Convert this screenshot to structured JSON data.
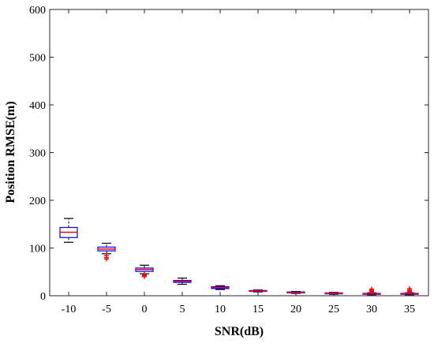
{
  "chart_data": {
    "type": "box",
    "xlabel": "SNR(dB)",
    "ylabel": "Position RMSE(m)",
    "categories": [
      "-10",
      "-5",
      "0",
      "5",
      "10",
      "15",
      "20",
      "25",
      "30",
      "35"
    ],
    "ylim": [
      0,
      600
    ],
    "yticks": [
      0,
      100,
      200,
      300,
      400,
      500,
      600
    ],
    "grid": false,
    "colors": {
      "box": "#0000ff",
      "median": "#ff0000",
      "whisker": "#000000",
      "outlier": "#ff0000"
    },
    "boxes": [
      {
        "category": "-10",
        "whisker_low": 112,
        "q1": 122,
        "median": 133,
        "q3": 143,
        "whisker_high": 162,
        "outliers": []
      },
      {
        "category": "-5",
        "whisker_low": 88,
        "q1": 94,
        "median": 98,
        "q3": 102,
        "whisker_high": 110,
        "outliers": [
          77,
          80,
          84
        ]
      },
      {
        "category": "0",
        "whisker_low": 46,
        "q1": 51,
        "median": 55,
        "q3": 58,
        "whisker_high": 64,
        "outliers": [
          40,
          42,
          44
        ]
      },
      {
        "category": "5",
        "whisker_low": 24,
        "q1": 28,
        "median": 30,
        "q3": 32,
        "whisker_high": 37,
        "outliers": []
      },
      {
        "category": "10",
        "whisker_low": 13,
        "q1": 15,
        "median": 17,
        "q3": 19,
        "whisker_high": 21,
        "outliers": []
      },
      {
        "category": "15",
        "whisker_low": 8,
        "q1": 9,
        "median": 10,
        "q3": 11,
        "whisker_high": 12,
        "outliers": []
      },
      {
        "category": "20",
        "whisker_low": 5,
        "q1": 6,
        "median": 7,
        "q3": 8,
        "whisker_high": 9,
        "outliers": []
      },
      {
        "category": "25",
        "whisker_low": 3,
        "q1": 4,
        "median": 5,
        "q3": 6,
        "whisker_high": 7,
        "outliers": []
      },
      {
        "category": "30",
        "whisker_low": 2,
        "q1": 3,
        "median": 4,
        "q3": 5,
        "whisker_high": 6,
        "outliers": [
          8,
          10,
          12,
          14
        ]
      },
      {
        "category": "35",
        "whisker_low": 2,
        "q1": 3,
        "median": 4,
        "q3": 5,
        "whisker_high": 6,
        "outliers": [
          8,
          10,
          12,
          15
        ]
      }
    ]
  }
}
